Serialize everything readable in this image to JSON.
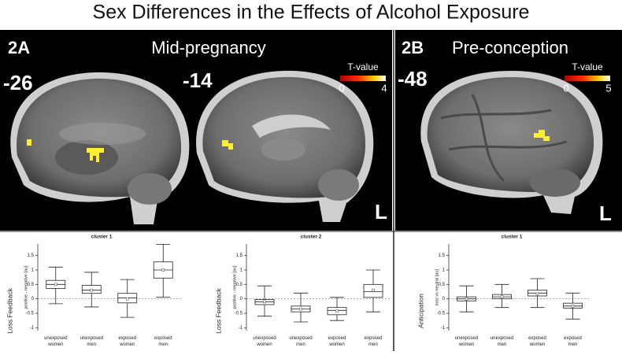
{
  "title": "Sex Differences in the Effects of Alcohol Exposure",
  "panels": [
    {
      "label": "2A",
      "subtitle": "Mid-pregnancy",
      "slices": [
        "-26",
        "-14"
      ],
      "colorbar": {
        "label": "T-value",
        "min": 0,
        "max": 4
      },
      "side": "L"
    },
    {
      "label": "2B",
      "subtitle": "Pre-conception",
      "slices": [
        "-48"
      ],
      "colorbar": {
        "label": "T-value",
        "min": 0,
        "max": 5
      },
      "side": "L"
    }
  ],
  "chart_data": [
    {
      "type": "box",
      "title": "cluster 1",
      "ylabel": "Loss Feedback",
      "ylabel_small": "positive - negative [au]",
      "categories": [
        "unexposed women",
        "unexposed men",
        "exposed women",
        "exposed men"
      ],
      "boxes": [
        {
          "whisker_low": -0.17,
          "q1": 0.36,
          "median": 0.5,
          "q3": 0.64,
          "whisker_high": 1.1,
          "mean": 0.5
        },
        {
          "whisker_low": -0.28,
          "q1": 0.19,
          "median": 0.3,
          "q3": 0.47,
          "whisker_high": 0.92,
          "mean": 0.3
        },
        {
          "whisker_low": -0.64,
          "q1": -0.14,
          "median": 0.03,
          "q3": 0.19,
          "whisker_high": 0.67,
          "mean": 0.0
        },
        {
          "whisker_low": 0.06,
          "q1": 0.72,
          "median": 1.0,
          "q3": 1.28,
          "whisker_high": 1.89,
          "mean": 1.0
        }
      ],
      "hline": 0,
      "ylim": [
        -1.1,
        1.9
      ],
      "yticks": [
        -1,
        -0.5,
        0,
        0.5,
        1,
        1.5
      ]
    },
    {
      "type": "box",
      "title": "cluster 2",
      "ylabel": "Loss Feedback",
      "ylabel_small": "positive - negative [au]",
      "categories": [
        "unexposed women",
        "unexposed men",
        "exposed women",
        "exposed men"
      ],
      "boxes": [
        {
          "whisker_low": -0.6,
          "q1": -0.2,
          "median": -0.1,
          "q3": -0.02,
          "whisker_high": 0.45,
          "mean": -0.1
        },
        {
          "whisker_low": -0.8,
          "q1": -0.45,
          "median": -0.35,
          "q3": -0.25,
          "whisker_high": 0.2,
          "mean": -0.35
        },
        {
          "whisker_low": -0.75,
          "q1": -0.55,
          "median": -0.4,
          "q3": -0.3,
          "whisker_high": 0.05,
          "mean": -0.42
        },
        {
          "whisker_low": -0.45,
          "q1": 0.05,
          "median": 0.25,
          "q3": 0.5,
          "whisker_high": 1.0,
          "mean": 0.3
        }
      ],
      "hline": 0,
      "ylim": [
        -1.1,
        1.9
      ],
      "yticks": [
        -1,
        -0.5,
        0,
        0.5,
        1,
        1.5
      ]
    },
    {
      "type": "box",
      "title": "cluster 1",
      "ylabel": "Anticipation",
      "ylabel_small": "loss vs neutral [au]",
      "categories": [
        "unexposed women",
        "unexposed men",
        "exposed women",
        "exposed men"
      ],
      "boxes": [
        {
          "whisker_low": -0.45,
          "q1": -0.07,
          "median": 0.0,
          "q3": 0.07,
          "whisker_high": 0.45,
          "mean": 0.0
        },
        {
          "whisker_low": -0.3,
          "q1": 0.0,
          "median": 0.07,
          "q3": 0.15,
          "whisker_high": 0.5,
          "mean": 0.07
        },
        {
          "whisker_low": -0.3,
          "q1": 0.1,
          "median": 0.2,
          "q3": 0.3,
          "whisker_high": 0.7,
          "mean": 0.17
        },
        {
          "whisker_low": -0.7,
          "q1": -0.32,
          "median": -0.25,
          "q3": -0.15,
          "whisker_high": 0.2,
          "mean": -0.25
        }
      ],
      "hline": 0,
      "ylim": [
        -1.1,
        1.9
      ],
      "yticks": [
        -1,
        -0.5,
        0,
        0.5,
        1,
        1.5
      ]
    }
  ]
}
